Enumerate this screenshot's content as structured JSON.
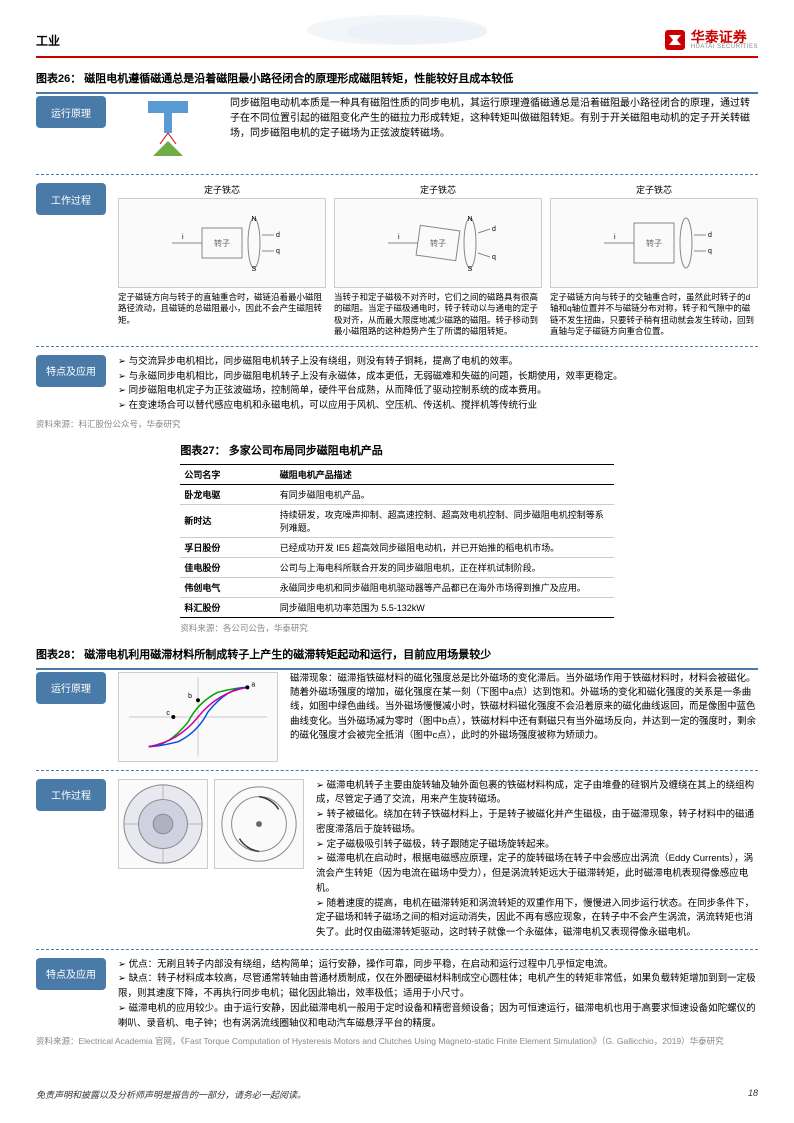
{
  "header": {
    "category": "工业",
    "logo_cn": "华泰证券",
    "logo_en": "HUATAI SECURITIES"
  },
  "fig26": {
    "title": "图表26： 磁阻电机遵循磁通总是沿着磁阻最小路径闭合的原理形成磁阻转矩，性能较好且成本较低",
    "label_principle": "运行原理",
    "label_process": "工作过程",
    "label_features": "特点及应用",
    "principle_text": "同步磁阻电动机本质是一种具有磁阻性质的同步电机，其运行原理遵循磁通总是沿着磁阻最小路径闭合的原理，通过转子在不同位置引起的磁阻变化产生的磁拉力形成转矩，这种转矩叫做磁阻转矩。有别于开关磁阻电动机的定子开关转磁场，同步磁阻电机的定子磁场为正弦波旋转磁场。",
    "stator_label": "定子铁芯",
    "caption1": "定子磁链方向与转子的直轴重合时，磁链沿着最小磁阻路径流动，且磁链的总磁阻最小，因此不会产生磁阻转矩。",
    "caption2": "当转子和定子磁极不对齐时，它们之间的磁路具有很高的磁阻。当定子磁极通电时，转子转动以与通电的定子极对齐，从而最大限度地减少磁路的磁阻。转子移动到最小磁阻路的这种趋势产生了所谓的磁阻转矩。",
    "caption3": "定子磁链方向与转子的交轴重合时，虽然此时转子的d轴和q轴位置并不与磁链分布对称，转子和气隙中的磁链不发生扭曲，只要转子稍有扭动就会发生转动，回到直轴与定子磁链方向重合位置。",
    "bullet1": "与交流异步电机相比，同步磁阻电机转子上没有绕组，则没有转子铜耗，提高了电机的效率。",
    "bullet2": "与永磁同步电机相比，同步磁阻电机转子上没有永磁体，成本更低，无弱磁难和失磁的问题，长期使用，效率更稳定。",
    "bullet3": "同步磁阻电机定子为正弦波磁场，控制简单，硬件平台成熟，从而降低了驱动控制系统的成本费用。",
    "bullet4": "在变速场合可以替代感应电机和永磁电机，可以应用于风机、空压机、传送机、搅拌机等传统行业",
    "source": "资料来源：科汇股份公众号，华泰研究"
  },
  "fig27": {
    "title": "图表27： 多家公司布局同步磁阻电机产品",
    "col1": "公司名字",
    "col2": "磁阻电机产品描述",
    "rows": [
      [
        "卧龙电驱",
        "有同步磁阻电机产品。"
      ],
      [
        "新时达",
        "持续研发，攻克噪声抑制、超高速控制、超高效电机控制、同步磁阻电机控制等系列难题。"
      ],
      [
        "孚日股份",
        "已经成功开发 IE5 超高效同步磁阻电动机，并已开始推的稻电机市场。"
      ],
      [
        "佳电股份",
        "公司与上海电科所联合开发的同步磁阻电机，正在样机试制阶段。"
      ],
      [
        "伟创电气",
        "永磁同步电机和同步磁阻电机驱动器等产品都已在海外市场得到推广及应用。"
      ],
      [
        "科汇股份",
        "同步磁阻电机功率范围为 5.5-132kW"
      ]
    ],
    "source": "资料来源：各公司公告，华泰研究"
  },
  "fig28": {
    "title": "图表28： 磁滞电机利用磁滞材料所制成转子上产生的磁滞转矩起动和运行，目前应用场景较少",
    "label_principle": "运行原理",
    "label_process": "工作过程",
    "label_features": "特点及应用",
    "principle_text": "磁滞现象：磁滞指铁磁材料的磁化强度总是比外磁场的变化滞后。当外磁场作用于铁磁材料时，材料会被磁化。随着外磁场强度的增加，磁化强度在某一刻（下图中a点）达到饱和。外磁场的变化和磁化强度的关系是一条曲线，如图中绿色曲线。当外磁场慢慢减小时，铁磁材料磁化强度不会沿着原来的磁化曲线返回，而是像图中蓝色曲线变化。当外磁场减为零时（图中b点），铁磁材料中还有剩磁只有当外磁场反向，并达到一定的强度时，剩余的磁化强度才会被完全抵消（图中c点），此时的外磁场强度被称为矫顽力。",
    "process_b1": "磁滞电机转子主要由旋转轴及轴外面包裹的铁磁材料构成，定子由堆叠的硅钢片及缠绕在其上的绕组构成，尽管定子通了交流，用来产生旋转磁场。",
    "process_b2": "转子被磁化。绕加在转子铁磁材料上，于是转子被磁化并产生磁极，由于磁滞现象，转子材料中的磁通密度滞落后于旋转磁场。",
    "process_b3": "定子磁极吸引转子磁极，转子跟随定子磁场旋转起来。",
    "process_b4": "磁滞电机在启动时，根据电磁感应原理，定子的旋转磁场在转子中会感应出涡流（Eddy Currents），涡流会产生转矩（因为电流在磁场中受力），但是涡流转矩远大于磁滞转矩，此时磁滞电机表现得像感应电机。",
    "process_b5": "随着速度的提高，电机在磁滞转矩和涡流转矩的双重作用下，慢慢进入同步运行状态。在同步条件下，定子磁场和转子磁场之间的相对运动消失，因此不再有感应现象，在转子中不会产生涡流，涡流转矩也消失了。此时仅由磁滞转矩驱动，这时转子就像一个永磁体，磁滞电机又表现得像永磁电机。",
    "feat_b1": "优点：无刷且转子内部没有绕组，结构简单；运行安静，操作可靠，同步平稳，在启动和运行过程中几乎恒定电流。",
    "feat_b2": "缺点：转子材料成本较高，尽管通常转轴由普通材质制成，仅在外圈硬磁材料制成空心圆柱体；电机产生的转矩非常低，如果负载转矩增加到到一定极限，则其速度下降，不再执行同步电机；磁化因此输出，效率极低；适用于小尺寸。",
    "feat_b3": "磁滞电机的应用较少。由于运行安静，因此磁滞电机一般用于定时设备和精密音频设备；因为可恒速运行，磁滞电机也用于高要求恒速设备如陀螺仪的喇叭、录音机、电子钟；也有涡涡流线圈轴仪和电动汽车磁悬浮平台的精度。",
    "source": "资料来源：Electrical Academia 官网，《Fast Torque Computation of Hysteresis Motors and Clutches Using Magneto-static Finite Element Simulation》（G. Gallicchio，2019）华泰研究"
  },
  "footer": {
    "disclaimer": "免责声明和披露以及分析师声明是报告的一部分，请务必一起阅读。",
    "page": "18"
  }
}
